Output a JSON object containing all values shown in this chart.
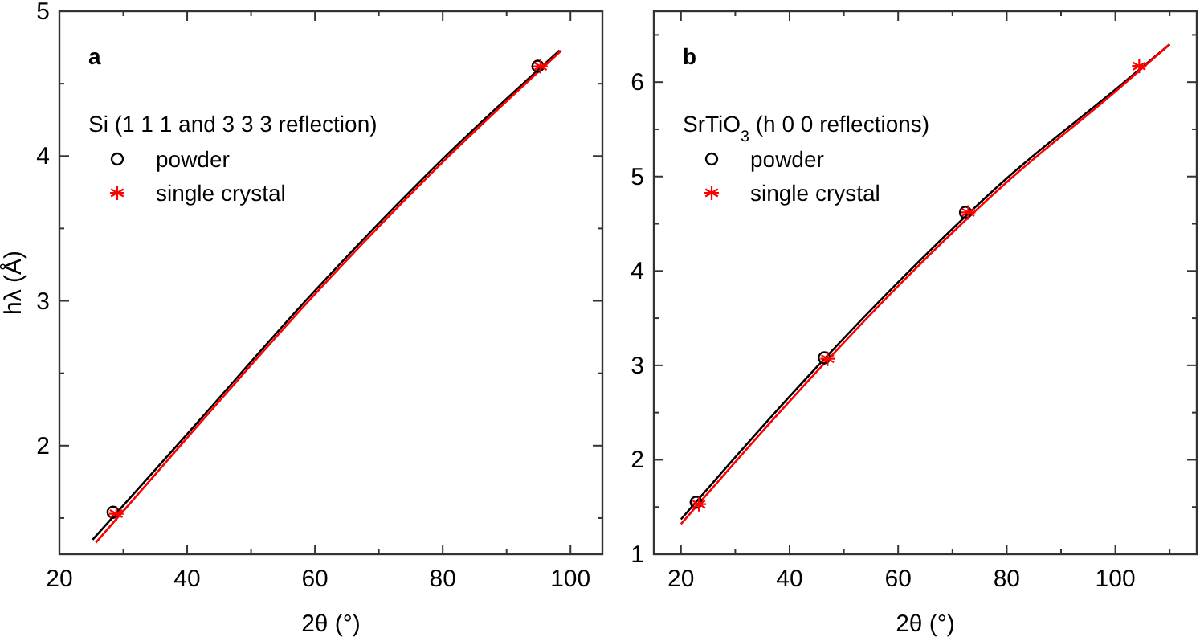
{
  "chart_data": [
    {
      "type": "scatter",
      "xlabel": "2θ (°)",
      "ylabel": "hλ (Å)",
      "legend_title": "Si (1 1 1 and 3 3 3 reflection)",
      "annotations": [
        "a"
      ],
      "legend": "top left",
      "xlim": [
        20,
        105
      ],
      "xticks": [
        20,
        {
          "value": 30,
          "label": null
        },
        40,
        {
          "value": 50,
          "label": null
        },
        60,
        {
          "value": 70,
          "label": null
        },
        80,
        {
          "value": 90,
          "label": null
        },
        100
      ],
      "ylim": [
        1.25,
        5
      ],
      "yticks": [
        {
          "value": 1.5,
          "label": null
        },
        2,
        {
          "value": 2.5,
          "label": null
        },
        3,
        {
          "value": 3.5,
          "label": null
        },
        4,
        {
          "value": 4.5,
          "label": null
        },
        5
      ],
      "series": [
        {
          "type": "line",
          "color": "#000000",
          "marker": "none",
          "x": [
            25.2,
            40,
            60,
            80,
            98.3
          ],
          "values": [
            1.35,
            2.08,
            3.07,
            3.98,
            4.73
          ]
        },
        {
          "type": "line",
          "color": "#ff0000",
          "marker": "none",
          "x": [
            25.7,
            40.5,
            60.5,
            80.5,
            98.6
          ],
          "values": [
            1.33,
            2.08,
            3.07,
            3.98,
            4.73
          ]
        },
        {
          "name": "powder",
          "color": "#000000",
          "marker": "circle",
          "x": [
            28.4,
            94.9
          ],
          "values": [
            1.54,
            4.62
          ]
        },
        {
          "name": "single crystal",
          "color": "#ff0000",
          "marker": "cross",
          "x": [
            28.9,
            95.3
          ],
          "values": [
            1.53,
            4.62
          ]
        }
      ]
    },
    {
      "type": "scatter",
      "xlabel": "2θ (°)",
      "legend_title": "SrTiO$_{3}$ (h 0 0 reflections)",
      "annotations": [
        "b"
      ],
      "legend": "top left",
      "xlim": [
        15,
        115
      ],
      "xticks": [
        20,
        {
          "value": 30,
          "label": null
        },
        40,
        {
          "value": 50,
          "label": null
        },
        60,
        {
          "value": 70,
          "label": null
        },
        80,
        {
          "value": 90,
          "label": null
        },
        100,
        {
          "value": 110,
          "label": null
        }
      ],
      "ylim": [
        1,
        6.75
      ],
      "yticks": [
        1,
        {
          "value": 1.5,
          "label": null
        },
        2,
        {
          "value": 2.5,
          "label": null
        },
        3,
        {
          "value": 3.5,
          "label": null
        },
        4,
        {
          "value": 4.5,
          "label": null
        },
        5,
        {
          "value": 5.5,
          "label": null
        },
        6,
        {
          "value": 6.5,
          "label": null
        }
      ],
      "series": [
        {
          "type": "line",
          "color": "#000000",
          "marker": "none",
          "x": [
            20,
            40,
            60,
            80,
            100,
            110
          ],
          "values": [
            1.37,
            2.67,
            3.88,
            4.98,
            5.92,
            6.4
          ]
        },
        {
          "type": "line",
          "color": "#ff0000",
          "marker": "none",
          "x": [
            20,
            40,
            60,
            80,
            100,
            110
          ],
          "values": [
            1.32,
            2.62,
            3.84,
            4.94,
            5.9,
            6.4
          ]
        },
        {
          "name": "powder",
          "color": "#000000",
          "marker": "circle",
          "x": [
            22.8,
            46.4,
            72.4
          ],
          "values": [
            1.55,
            3.08,
            4.62
          ]
        },
        {
          "name": "single crystal",
          "color": "#ff0000",
          "marker": "cross",
          "x": [
            23.3,
            47,
            72.9,
            104.4
          ],
          "values": [
            1.53,
            3.07,
            4.62,
            6.17
          ]
        }
      ]
    }
  ]
}
